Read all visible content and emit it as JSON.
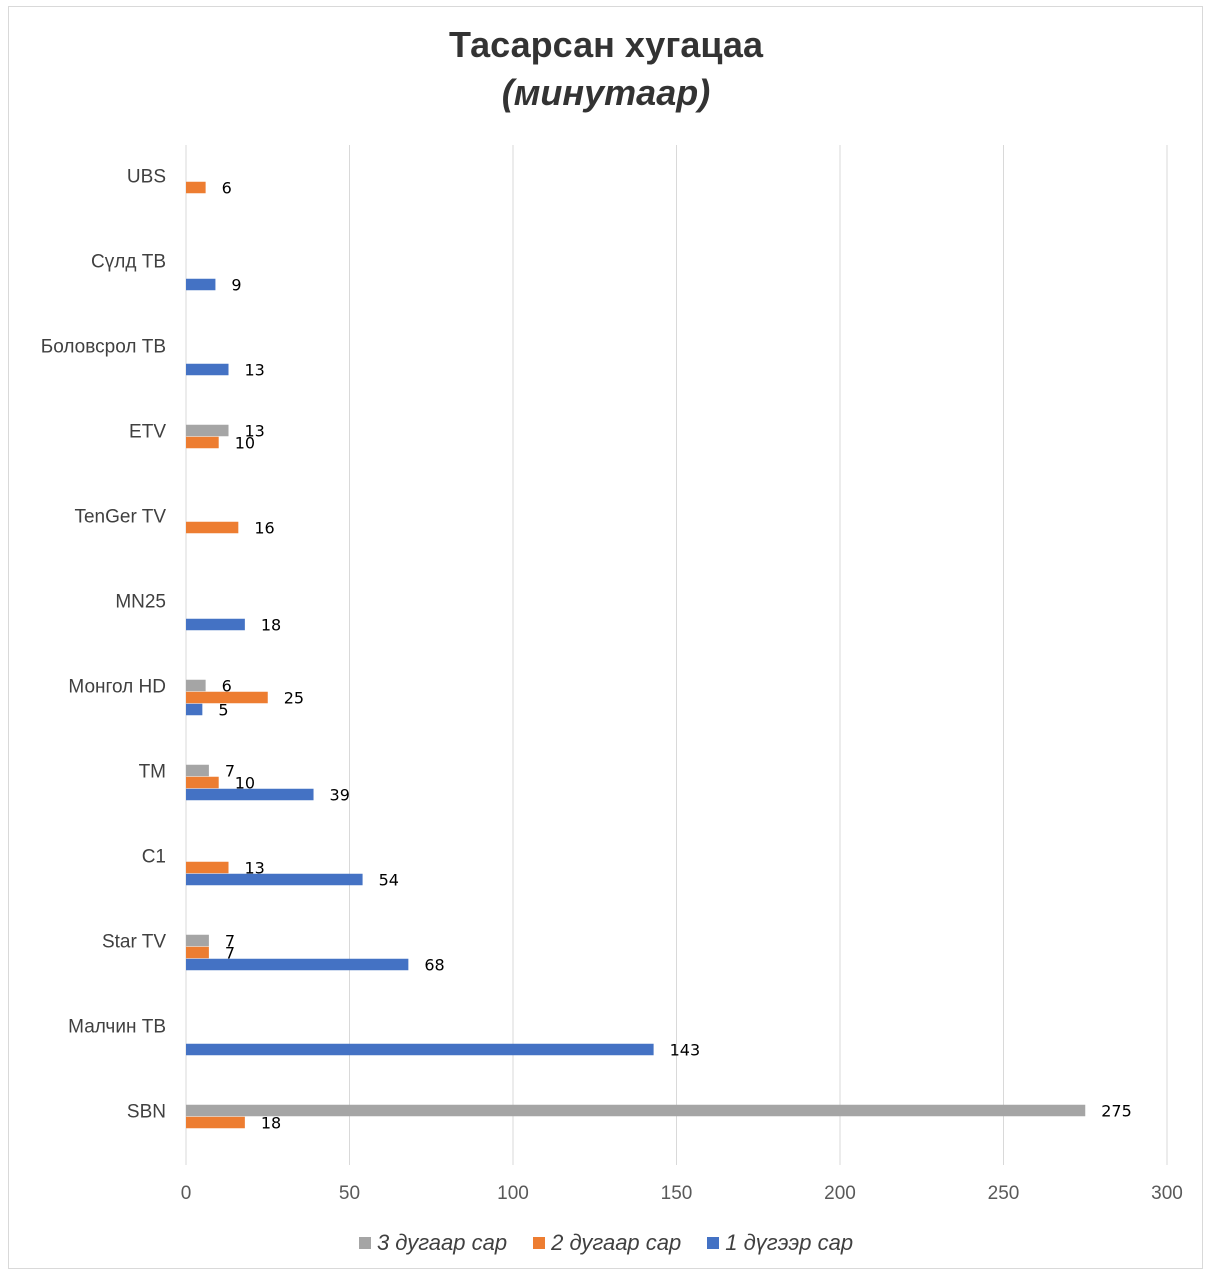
{
  "chart_data": {
    "type": "bar",
    "orientation": "horizontal",
    "title": "Тасарсан хугацаа",
    "subtitle": "(минутаар)",
    "categories": [
      "UBS",
      "Сүлд ТВ",
      "Боловсрол ТВ",
      "ETV",
      "TenGer TV",
      "MN25",
      "Монгол HD",
      "TM",
      "C1",
      "Star TV",
      "Малчин ТВ",
      "SBN"
    ],
    "series": [
      {
        "name": "3 дугаар сар",
        "color": "#a5a5a5",
        "values": [
          null,
          null,
          null,
          13,
          null,
          null,
          6,
          7,
          null,
          7,
          null,
          275
        ]
      },
      {
        "name": "2 дугаар сар",
        "color": "#ed7d31",
        "values": [
          6,
          null,
          null,
          10,
          16,
          null,
          25,
          10,
          13,
          7,
          null,
          18
        ]
      },
      {
        "name": "1 дүгээр сар",
        "color": "#4472c4",
        "values": [
          null,
          9,
          13,
          null,
          null,
          18,
          5,
          39,
          54,
          68,
          143,
          null
        ]
      }
    ],
    "xlim": [
      0,
      300
    ],
    "xticks": [
      0,
      50,
      100,
      150,
      200,
      250,
      300
    ],
    "grid": true,
    "legend_position": "bottom"
  }
}
